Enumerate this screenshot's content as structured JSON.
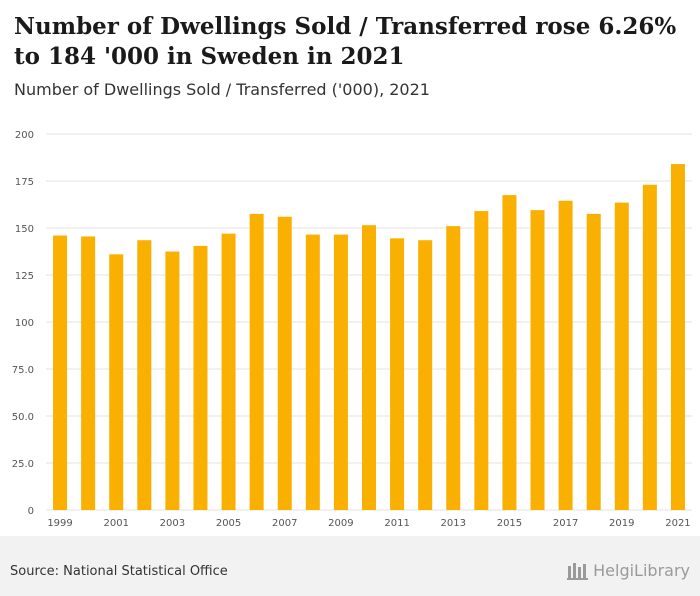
{
  "header": {
    "title": "Number of Dwellings Sold / Transferred rose 6.26% to 184 '000 in Sweden in 2021",
    "subtitle": "Number of Dwellings Sold / Transferred ('000), 2021"
  },
  "footer": {
    "source": "Source: National Statistical Office",
    "brand": "HelgiLibrary"
  },
  "colors": {
    "bar": "#f9b000",
    "grid": "#e3e3e3",
    "axis_text": "#555555"
  },
  "chart_data": {
    "type": "bar",
    "categories": [
      "1999",
      "2000",
      "2001",
      "2002",
      "2003",
      "2004",
      "2005",
      "2006",
      "2007",
      "2008",
      "2009",
      "2010",
      "2011",
      "2012",
      "2013",
      "2014",
      "2015",
      "2016",
      "2017",
      "2018",
      "2019",
      "2020",
      "2021"
    ],
    "x_tick_labels": [
      "1999",
      "2001",
      "2003",
      "2005",
      "2007",
      "2009",
      "2011",
      "2013",
      "2015",
      "2017",
      "2019",
      "2021"
    ],
    "values": [
      146,
      145.5,
      136,
      143.5,
      137.5,
      140.5,
      147,
      157.5,
      156,
      146.5,
      146.5,
      151.5,
      144.5,
      143.5,
      151,
      159,
      167.5,
      159.5,
      164.5,
      157.5,
      163.5,
      173,
      184
    ],
    "ylim": [
      0,
      200
    ],
    "yticks": [
      "0",
      "25.0",
      "50.0",
      "75.0",
      "100",
      "125",
      "150",
      "175",
      "200"
    ],
    "ytick_values": [
      0,
      25,
      50,
      75,
      100,
      125,
      150,
      175,
      200
    ],
    "grid": true
  }
}
